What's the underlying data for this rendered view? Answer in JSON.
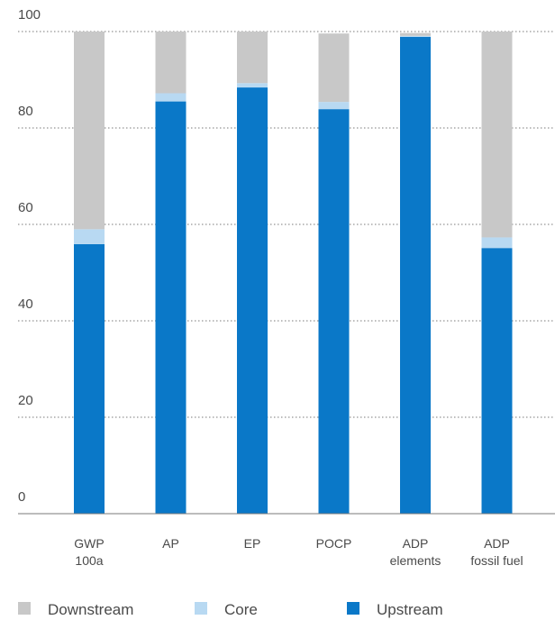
{
  "chart_data": {
    "type": "bar",
    "stacked": true,
    "categories": [
      [
        "GWP",
        "100a"
      ],
      [
        "AP"
      ],
      [
        "EP"
      ],
      [
        "POCP"
      ],
      [
        "ADP",
        "elements"
      ],
      [
        "ADP",
        "fossil fuel"
      ]
    ],
    "series": [
      {
        "name": "Upstream",
        "color": "#0a78c8",
        "values": [
          55.9,
          85.5,
          88.4,
          83.9,
          98.9,
          55.1
        ]
      },
      {
        "name": "Core",
        "color": "#b8d9f2",
        "values": [
          3.1,
          1.7,
          0.9,
          1.5,
          0.2,
          2.2
        ]
      },
      {
        "name": "Downstream",
        "color": "#c8c8c8",
        "values": [
          41.0,
          12.8,
          10.7,
          14.2,
          0.6,
          42.7
        ]
      }
    ],
    "legend_order": [
      "Downstream",
      "Core",
      "Upstream"
    ],
    "yticks": [
      0,
      20,
      40,
      60,
      80,
      100
    ],
    "ylim": [
      0,
      100
    ],
    "grid": "dotted horizontal",
    "legend_position": "bottom"
  }
}
